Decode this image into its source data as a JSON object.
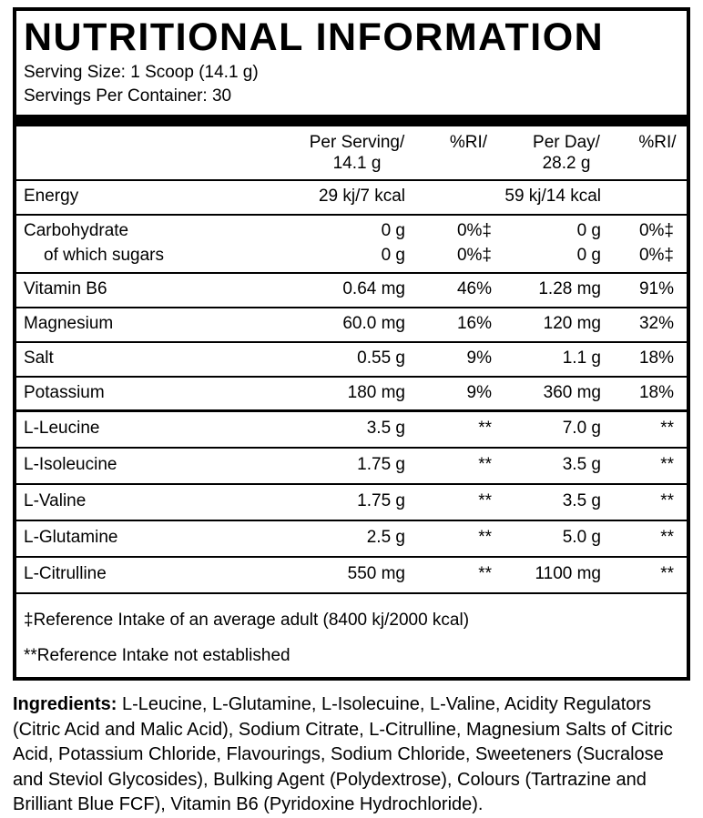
{
  "panel": {
    "title": "NUTRITIONAL INFORMATION",
    "serving_size": "Serving Size: 1 Scoop (14.1 g)",
    "servings_per_container": "Servings Per Container: 30"
  },
  "table": {
    "headers": {
      "per_serving_line1": "Per Serving/",
      "per_serving_line2": "14.1 g",
      "ri_serving": "%RI/",
      "per_day_line1": "Per Day/",
      "per_day_line2": "28.2 g",
      "ri_day": "%RI/"
    },
    "rows": [
      {
        "name": "Energy",
        "per_serving": "29 kj/7 kcal",
        "ri_serving": "",
        "per_day": "59 kj/14 kcal",
        "ri_day": ""
      },
      {
        "name": "Carbohydrate",
        "per_serving": "0 g",
        "ri_serving": "0%‡",
        "per_day": "0 g",
        "ri_day": "0%‡"
      },
      {
        "name": "of which sugars",
        "per_serving": "0 g",
        "ri_serving": "0%‡",
        "per_day": "0 g",
        "ri_day": "0%‡"
      },
      {
        "name": "Vitamin B6",
        "per_serving": "0.64 mg",
        "ri_serving": "46%",
        "per_day": "1.28 mg",
        "ri_day": "91%"
      },
      {
        "name": "Magnesium",
        "per_serving": "60.0 mg",
        "ri_serving": "16%",
        "per_day": "120 mg",
        "ri_day": "32%"
      },
      {
        "name": "Salt",
        "per_serving": "0.55 g",
        "ri_serving": "9%",
        "per_day": "1.1 g",
        "ri_day": "18%"
      },
      {
        "name": "Potassium",
        "per_serving": "180 mg",
        "ri_serving": "9%",
        "per_day": "360 mg",
        "ri_day": "18%"
      },
      {
        "name": "L-Leucine",
        "per_serving": "3.5 g",
        "ri_serving": "**",
        "per_day": "7.0 g",
        "ri_day": "**"
      },
      {
        "name": "L-Isoleucine",
        "per_serving": "1.75 g",
        "ri_serving": "**",
        "per_day": "3.5 g",
        "ri_day": "**"
      },
      {
        "name": "L-Valine",
        "per_serving": "1.75 g",
        "ri_serving": "**",
        "per_day": "3.5 g",
        "ri_day": "**"
      },
      {
        "name": "L-Glutamine",
        "per_serving": "2.5 g",
        "ri_serving": "**",
        "per_day": "5.0 g",
        "ri_day": "**"
      },
      {
        "name": "L-Citrulline",
        "per_serving": "550 mg",
        "ri_serving": "**",
        "per_day": "1100 mg",
        "ri_day": "**"
      }
    ]
  },
  "footnotes": [
    "‡Reference Intake of an average adult (8400 kj/2000 kcal)",
    "**Reference Intake not established"
  ],
  "ingredients": {
    "label": "Ingredients:",
    "text": " L-Leucine, L-Glutamine, L-Isolecuine, L-Valine, Acidity Regulators (Citric Acid and Malic Acid), Sodium Citrate, L-Citrulline, Magnesium Salts of Citric Acid, Potassium Chloride, Flavourings, Sodium Chloride, Sweeteners (Sucralose and Steviol Glycosides), Bulking Agent (Polydextrose), Colours (Tartrazine and Brilliant Blue FCF), Vitamin B6 (Pyridoxine Hydrochloride)."
  }
}
